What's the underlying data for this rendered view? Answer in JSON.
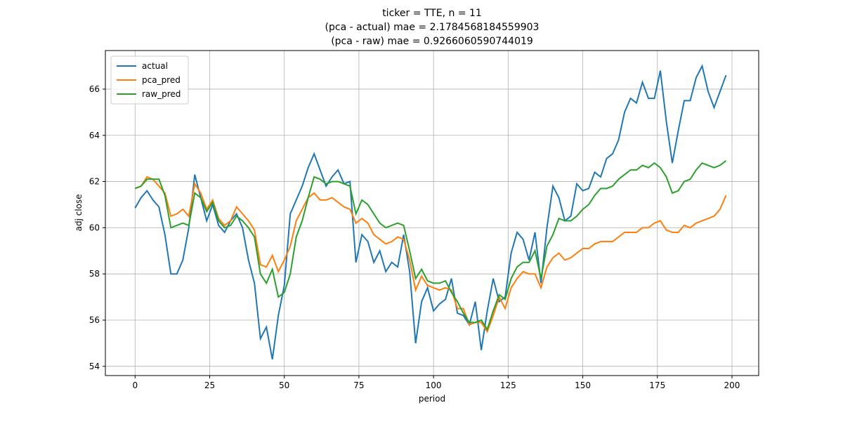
{
  "chart_data": {
    "type": "line",
    "title": [
      "ticker = TTE, n = 11",
      "(pca - actual) mae = 2.1784568184559903",
      "(pca - raw) mae = 0.9266060590744019"
    ],
    "xlabel": "period",
    "ylabel": "adj close",
    "x": [
      0,
      2,
      4,
      6,
      8,
      10,
      12,
      14,
      16,
      18,
      20,
      22,
      24,
      26,
      28,
      30,
      32,
      34,
      36,
      38,
      40,
      42,
      44,
      46,
      48,
      50,
      52,
      54,
      56,
      58,
      60,
      62,
      64,
      66,
      68,
      70,
      72,
      74,
      76,
      78,
      80,
      82,
      84,
      86,
      88,
      90,
      92,
      94,
      96,
      98,
      100,
      102,
      104,
      106,
      108,
      110,
      112,
      114,
      116,
      118,
      120,
      122,
      124,
      126,
      128,
      130,
      132,
      134,
      136,
      138,
      140,
      142,
      144,
      146,
      148,
      150,
      152,
      154,
      156,
      158,
      160,
      162,
      164,
      166,
      168,
      170,
      172,
      174,
      176,
      178,
      180,
      182,
      184,
      186,
      188,
      190,
      192,
      194,
      196,
      198
    ],
    "series": [
      {
        "name": "actual",
        "color": "#1f77b4",
        "values": [
          60.85,
          61.3,
          61.6,
          61.2,
          60.9,
          59.7,
          58.0,
          58.0,
          58.6,
          60.0,
          62.3,
          61.3,
          60.3,
          61.0,
          60.1,
          59.8,
          60.3,
          60.6,
          60.0,
          58.6,
          57.6,
          55.2,
          55.7,
          54.3,
          56.2,
          57.5,
          60.6,
          61.2,
          61.8,
          62.6,
          63.2,
          62.5,
          61.8,
          62.2,
          62.5,
          61.9,
          62.0,
          58.5,
          59.7,
          59.4,
          58.5,
          59.0,
          58.1,
          58.5,
          58.3,
          59.7,
          58.1,
          55.0,
          56.8,
          57.4,
          56.4,
          56.7,
          56.9,
          57.8,
          56.3,
          56.2,
          55.8,
          56.8,
          54.7,
          56.4,
          57.8,
          56.8,
          57.0,
          58.9,
          59.8,
          59.5,
          58.6,
          59.8,
          57.6,
          60.0,
          61.8,
          61.3,
          60.3,
          60.5,
          61.9,
          61.6,
          61.7,
          62.4,
          62.2,
          63.0,
          63.2,
          63.8,
          65.0,
          65.6,
          65.4,
          66.3,
          65.6,
          65.6,
          66.8,
          64.6,
          62.8,
          64.2,
          65.5,
          65.5,
          66.5,
          67.0,
          65.9,
          65.2,
          65.9,
          66.6
        ]
      },
      {
        "name": "pca_pred",
        "color": "#ff7f0e",
        "values": [
          61.7,
          61.8,
          62.2,
          62.1,
          61.8,
          61.5,
          60.5,
          60.6,
          60.8,
          60.5,
          61.9,
          61.5,
          60.8,
          61.2,
          60.4,
          60.1,
          60.3,
          60.9,
          60.6,
          60.3,
          59.9,
          58.4,
          58.3,
          58.8,
          58.1,
          58.6,
          59.2,
          60.3,
          60.8,
          61.3,
          61.5,
          61.2,
          61.2,
          61.3,
          61.1,
          60.9,
          60.8,
          60.2,
          60.4,
          60.2,
          59.7,
          59.5,
          59.3,
          59.4,
          59.6,
          59.5,
          58.6,
          57.3,
          57.9,
          57.5,
          57.4,
          57.3,
          57.4,
          57.3,
          56.5,
          56.5,
          55.8,
          55.9,
          55.9,
          55.5,
          56.2,
          57.0,
          56.5,
          57.4,
          57.8,
          58.1,
          58.0,
          58.0,
          57.4,
          58.3,
          58.7,
          58.9,
          58.6,
          58.7,
          58.9,
          59.1,
          59.1,
          59.3,
          59.4,
          59.4,
          59.4,
          59.6,
          59.8,
          59.8,
          59.8,
          60.0,
          60.0,
          60.2,
          60.3,
          59.9,
          59.8,
          59.8,
          60.1,
          60.0,
          60.2,
          60.3,
          60.4,
          60.5,
          60.8,
          61.4
        ]
      },
      {
        "name": "raw_pred",
        "color": "#2ca02c",
        "values": [
          61.7,
          61.8,
          62.1,
          62.1,
          62.1,
          61.4,
          60.0,
          60.1,
          60.2,
          60.1,
          61.5,
          61.3,
          60.7,
          61.1,
          60.3,
          60.0,
          60.1,
          60.5,
          60.3,
          60.0,
          59.6,
          58.0,
          57.6,
          58.2,
          57.0,
          57.2,
          58.0,
          59.6,
          60.3,
          61.3,
          62.2,
          62.1,
          61.9,
          62.0,
          62.0,
          61.9,
          61.8,
          60.6,
          61.2,
          61.0,
          60.6,
          60.2,
          60.0,
          60.1,
          60.2,
          60.1,
          59.0,
          57.8,
          58.2,
          57.7,
          57.6,
          57.6,
          57.7,
          57.2,
          56.8,
          56.3,
          55.9,
          55.9,
          56.0,
          55.6,
          56.4,
          57.1,
          56.9,
          57.8,
          58.3,
          58.5,
          58.5,
          59.0,
          57.8,
          59.2,
          59.7,
          60.4,
          60.3,
          60.3,
          60.5,
          60.8,
          61.0,
          61.4,
          61.7,
          61.7,
          61.8,
          62.1,
          62.3,
          62.5,
          62.5,
          62.7,
          62.6,
          62.8,
          62.6,
          62.2,
          61.5,
          61.6,
          62.0,
          62.1,
          62.5,
          62.8,
          62.7,
          62.6,
          62.7,
          62.9
        ]
      }
    ],
    "xlim": [
      -9.95,
      208.95
    ],
    "xticks": [
      0,
      25,
      50,
      75,
      100,
      125,
      150,
      175,
      200
    ],
    "ylim": [
      53.6,
      67.67
    ],
    "yticks": [
      54,
      56,
      58,
      60,
      62,
      64,
      66
    ],
    "grid": true,
    "legend": "upper left"
  }
}
